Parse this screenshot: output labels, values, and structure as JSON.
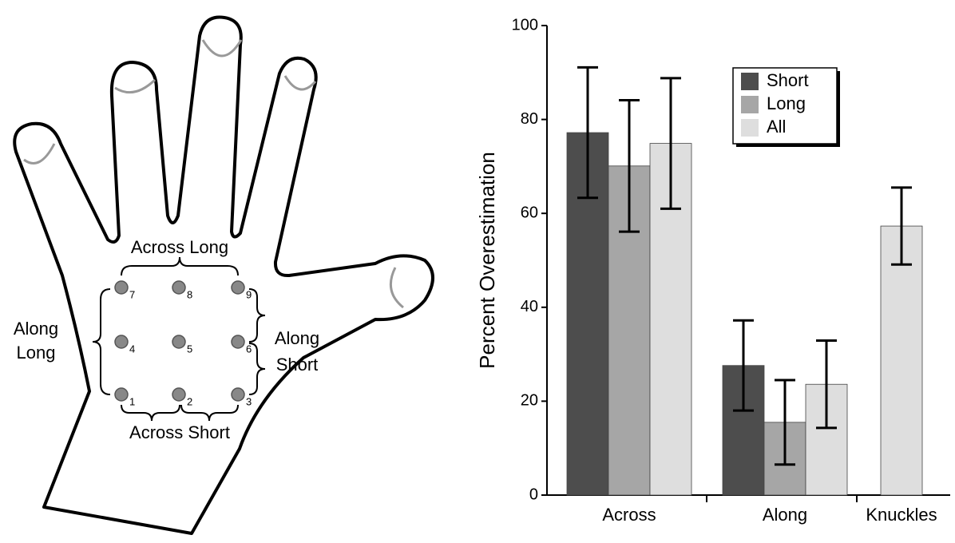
{
  "diagram": {
    "across_long": "Across Long",
    "across_short": "Across Short",
    "along_long": [
      "Along",
      "Long"
    ],
    "along_short": [
      "Along",
      "Short"
    ],
    "points": [
      "1",
      "2",
      "3",
      "4",
      "5",
      "6",
      "7",
      "8",
      "9"
    ]
  },
  "chart_data": {
    "type": "bar",
    "y_label": "Percent Overestimation",
    "categories": [
      "Across",
      "Along",
      "Knuckles"
    ],
    "series": [
      {
        "name": "Short",
        "color": "#4d4d4d",
        "values": [
          77.2,
          27.6,
          null
        ],
        "errors": [
          13.9,
          9.6,
          null
        ]
      },
      {
        "name": "Long",
        "color": "#a6a6a6",
        "values": [
          70.1,
          15.5,
          null
        ],
        "errors": [
          14.0,
          9.0,
          null
        ]
      },
      {
        "name": "All",
        "color": "#dedede",
        "values": [
          74.9,
          23.6,
          57.3
        ],
        "errors": [
          13.9,
          9.3,
          8.2
        ]
      }
    ],
    "ylim": [
      0,
      100
    ],
    "yticks": [
      0,
      20,
      40,
      60,
      80,
      100
    ],
    "legend": "top-right"
  }
}
